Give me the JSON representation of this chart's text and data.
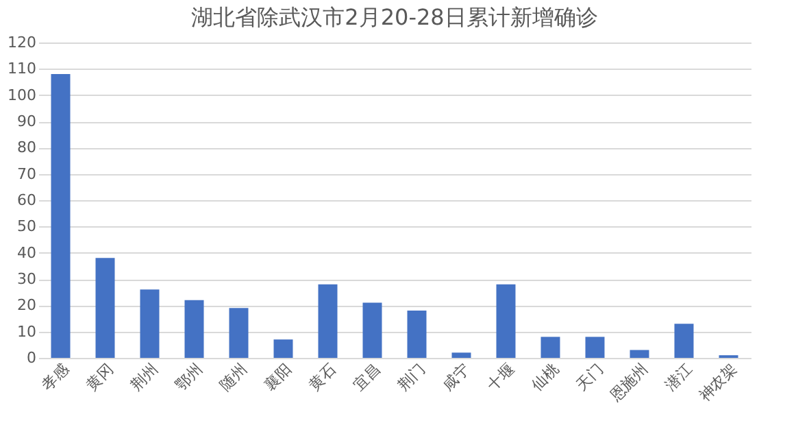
{
  "chart_data": {
    "type": "bar",
    "title": "湖北省除武汉市2月20-28日累计新增确诊",
    "categories": [
      "孝感",
      "黄冈",
      "荆州",
      "鄂州",
      "随州",
      "襄阳",
      "黄石",
      "宜昌",
      "荆门",
      "咸宁",
      "十堰",
      "仙桃",
      "天门",
      "恩施州",
      "潜江",
      "神农架"
    ],
    "values": [
      108,
      38,
      26,
      22,
      19,
      7,
      28,
      21,
      18,
      2,
      28,
      8,
      8,
      3,
      13,
      1
    ],
    "color": "#4472c4",
    "ylim": [
      0,
      120
    ],
    "yticks": [
      0,
      10,
      20,
      30,
      40,
      50,
      60,
      70,
      80,
      90,
      100,
      110,
      120
    ],
    "grid": "y"
  }
}
